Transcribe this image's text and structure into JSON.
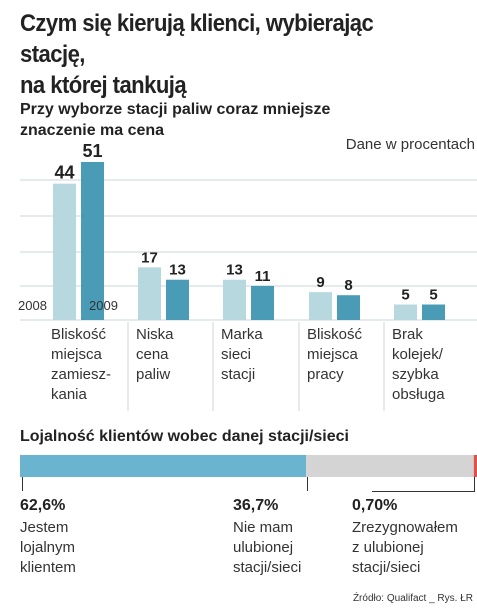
{
  "title_lines": [
    "Czym się kierują klienci, wybierając stację,",
    "na której tankują"
  ],
  "subtitle_lines": [
    "Przy wyborze stacji paliw coraz mniejsze",
    "znaczenie ma cena"
  ],
  "units_note": "Dane w procentach",
  "chart_data": [
    {
      "type": "bar",
      "title": "Przy wyborze stacji paliw coraz mniejsze znaczenie ma cena",
      "categories": [
        [
          "Bliskość",
          "miejsca",
          "zamiesz-",
          "kania"
        ],
        [
          "Niska",
          "cena",
          "paliw"
        ],
        [
          "Marka",
          "sieci",
          "stacji"
        ],
        [
          "Bliskość",
          "miejsca",
          "pracy"
        ],
        [
          "Brak",
          "kolejek/",
          "szybka",
          "obsługa"
        ]
      ],
      "series": [
        {
          "name": "2008",
          "values": [
            44,
            17,
            13,
            9,
            5
          ],
          "color": "#b8d8e0"
        },
        {
          "name": "2009",
          "values": [
            51,
            13,
            11,
            8,
            5
          ],
          "color": "#4a9bb6"
        }
      ],
      "ylim": [
        0,
        51
      ],
      "grid": true,
      "unit": "Dane w procentach"
    },
    {
      "type": "bar",
      "title": "Lojalność klientów wobec danej stacji/sieci",
      "orientation": "horizontal-stacked",
      "segments": [
        {
          "value": 62.6,
          "pct_label": "62,6%",
          "desc": [
            "Jestem",
            "lojalnym",
            "klientem"
          ],
          "color": "#6ab4d0"
        },
        {
          "value": 36.7,
          "pct_label": "36,7%",
          "desc": [
            "Nie mam",
            "ulubionej",
            "stacji/sieci"
          ],
          "color": "#d4d4d4"
        },
        {
          "value": 0.7,
          "pct_label": "0,70%",
          "desc": [
            "Zrezygnowałem",
            "z ulubionej",
            "stacji/sieci"
          ],
          "color": "#d9534f"
        }
      ]
    }
  ],
  "source": "Źródło: Qualifact _ Rys. ŁR"
}
